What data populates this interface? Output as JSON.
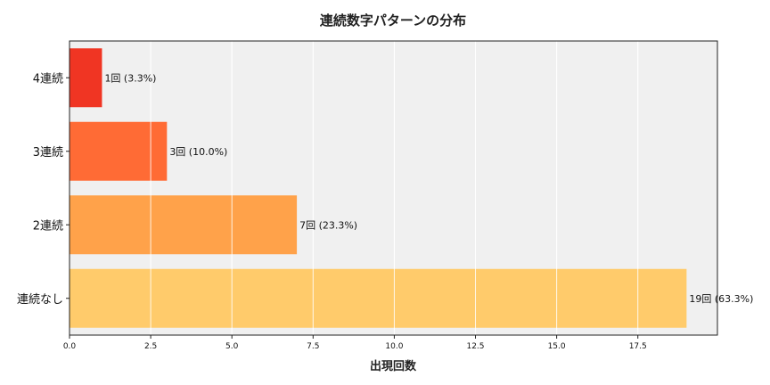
{
  "chart_data": {
    "type": "bar",
    "orientation": "horizontal",
    "title": "連続数字パターンの分布",
    "xlabel": "出現回数",
    "ylabel": "",
    "categories": [
      "4連続",
      "3連続",
      "2連続",
      "連続なし"
    ],
    "values": [
      1,
      3,
      7,
      19
    ],
    "data_labels": [
      "1回 (3.3%)",
      "3回 (10.0%)",
      "7回 (23.3%)",
      "19回 (63.3%)"
    ],
    "colors": [
      "#f03523",
      "#ff6b35",
      "#ffa24a",
      "#ffcb6b"
    ],
    "xlim": [
      0,
      19.95
    ],
    "xticks": [
      0,
      2.5,
      5,
      7.5,
      10,
      12.5,
      15,
      17.5
    ],
    "xtick_labels": [
      "0.0",
      "2.5",
      "5.0",
      "7.5",
      "10.0",
      "12.5",
      "15.0",
      "17.5"
    ],
    "grid": true,
    "background": "#f0f0f0"
  }
}
